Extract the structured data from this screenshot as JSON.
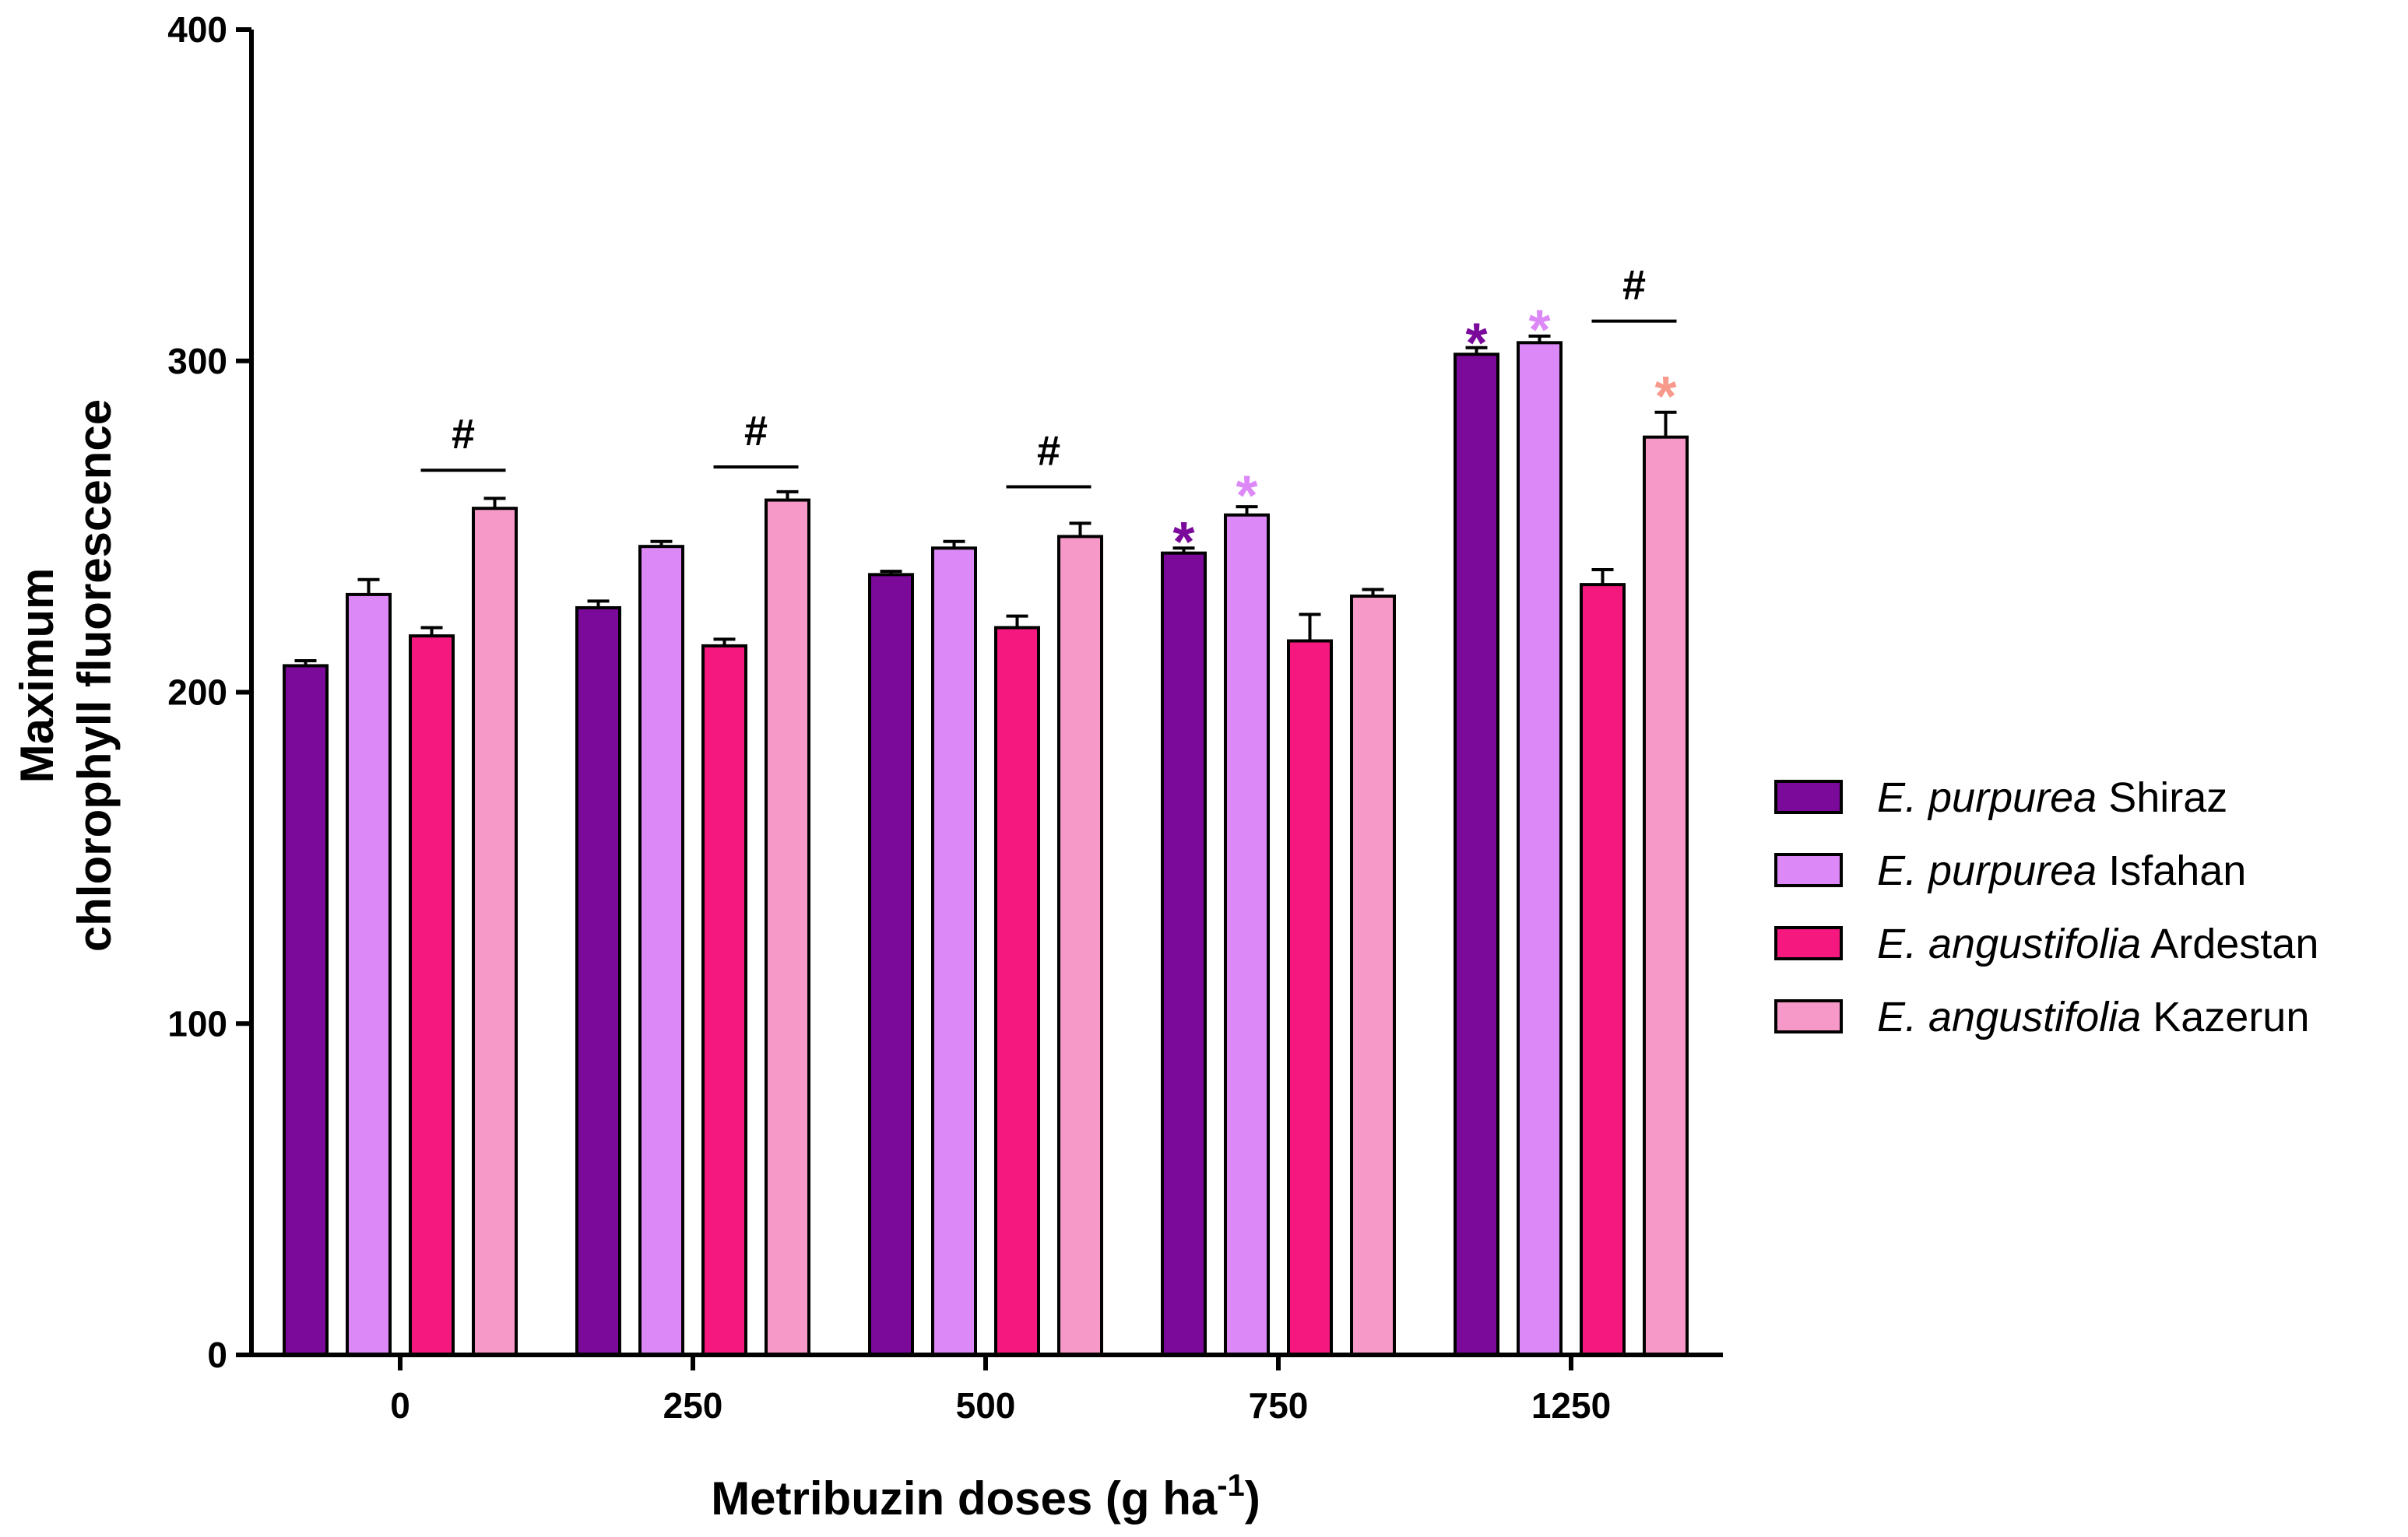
{
  "chart_data": {
    "type": "bar",
    "xlabel": "Metribuzin doses (g ha",
    "xlabel_sup": "-1",
    "xlabel_end": ")",
    "ylabel_line1": "Maximum",
    "ylabel_line2": "chlorophyll fluorescence",
    "ylim": [
      0,
      400
    ],
    "yticks": [
      "0",
      "100",
      "200",
      "300",
      "400"
    ],
    "ytick_values": [
      0,
      100,
      200,
      300,
      400
    ],
    "categories": [
      "0",
      "250",
      "500",
      "750",
      "1250"
    ],
    "legend_position": "right",
    "series": [
      {
        "name_italic": "E. purpurea",
        "name_rest": " Shiraz",
        "color": "#7B0A9B",
        "values": [
          208,
          225.5,
          235.5,
          242,
          302
        ],
        "errors": [
          1.5,
          2,
          1,
          1.5,
          2
        ]
      },
      {
        "name_italic": "E. purpurea",
        "name_rest": " Isfahan",
        "color": "#DD88F7",
        "values": [
          229.5,
          244,
          243.5,
          253.5,
          305.5
        ],
        "errors": [
          4.5,
          1.5,
          2,
          2.5,
          2
        ]
      },
      {
        "name_italic": "E. angustifolia",
        "name_rest": " Ardestan",
        "color": "#F5197F",
        "values": [
          217,
          214,
          219.5,
          215.5,
          232.5
        ],
        "errors": [
          2.5,
          2,
          3.5,
          8,
          4.5
        ]
      },
      {
        "name_italic": "E. angustifolia",
        "name_rest": " Kazerun",
        "color": "#F799C8",
        "values": [
          255.5,
          258,
          247,
          229,
          277
        ],
        "errors": [
          3,
          2.5,
          4,
          2,
          7.5
        ]
      }
    ],
    "annotations": [
      {
        "text": "#",
        "category": 0,
        "between": [
          2,
          3
        ],
        "y": 267,
        "line_y": 267,
        "color": "#000000"
      },
      {
        "text": "#",
        "category": 1,
        "between": [
          2,
          3
        ],
        "y": 268,
        "line_y": 268,
        "color": "#000000"
      },
      {
        "text": "#",
        "category": 2,
        "between": [
          2,
          3
        ],
        "y": 262,
        "line_y": 262,
        "color": "#000000"
      },
      {
        "text": "*",
        "category": 3,
        "series": 0,
        "y": 248,
        "color": "#7B0A9B"
      },
      {
        "text": "*",
        "category": 3,
        "series": 1,
        "y": 262,
        "color": "#DD88F7"
      },
      {
        "text": "*",
        "category": 4,
        "series": 0,
        "y": 308,
        "color": "#7B0A9B"
      },
      {
        "text": "*",
        "category": 4,
        "series": 1,
        "y": 312,
        "color": "#DD88F7"
      },
      {
        "text": "#",
        "category": 4,
        "between": [
          2,
          3
        ],
        "y": 312,
        "line_y": 312,
        "color": "#000000"
      },
      {
        "text": "*",
        "category": 4,
        "series": 3,
        "y": 292,
        "color": "#F79A8C"
      }
    ]
  }
}
